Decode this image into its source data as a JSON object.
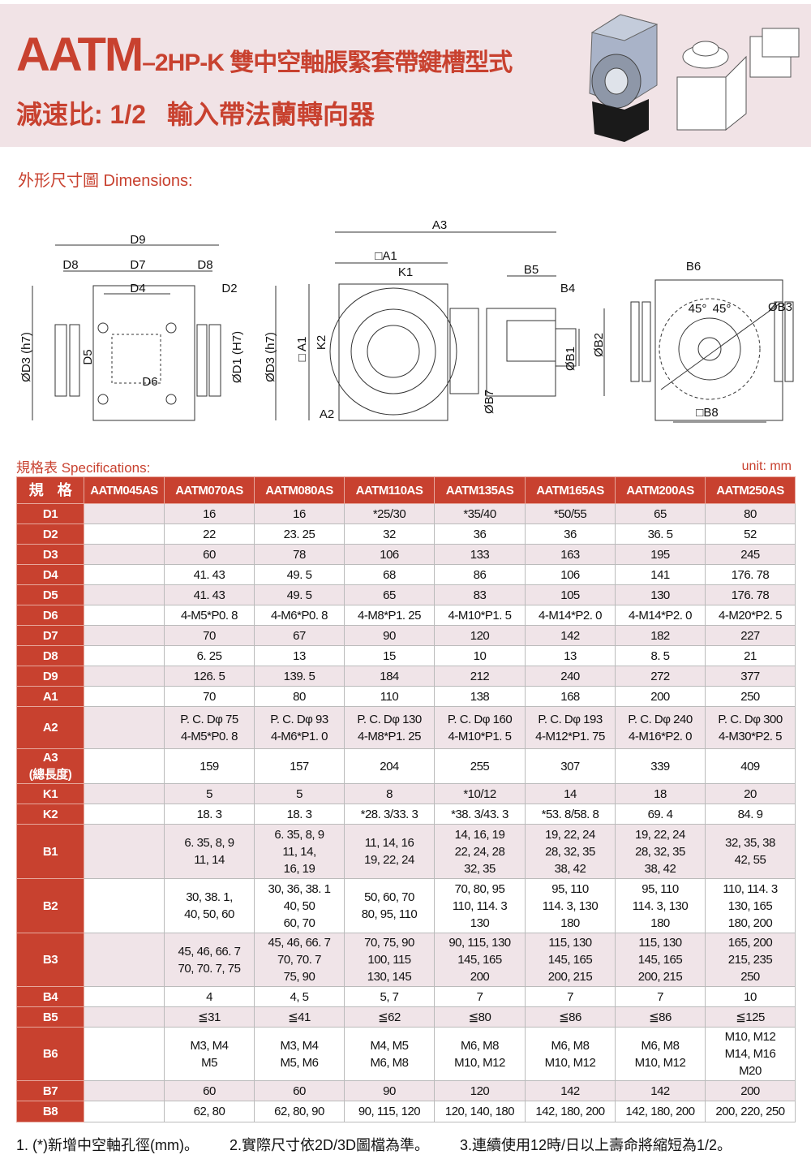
{
  "header": {
    "title_main": "AATM",
    "title_model": "–2HP-K",
    "title_desc": " 雙中空軸脹緊套帶鍵槽型式",
    "ratio": "減速比: 1/2",
    "input": "輸入帶法蘭轉向器"
  },
  "dimensions": {
    "heading": "外形尺寸圖 Dimensions:",
    "labels": {
      "D9": "D9",
      "D8a": "D8",
      "D7": "D7",
      "D8b": "D8",
      "D4": "D4",
      "D2": "D2",
      "D3a": "ØD3 (h7)",
      "D5": "D5",
      "D6": "D6",
      "D1": "ØD1 (H7)",
      "D3b": "ØD3 (h7)",
      "A3": "A3",
      "A1": "□A1",
      "K1": "K1",
      "B5": "B5",
      "B4": "B4",
      "A1v": "□ A1",
      "K2": "K2",
      "A2": "A2",
      "B7": "ØB7",
      "B1": "ØB1",
      "B2": "ØB2",
      "B6": "B6",
      "ang1": "45°",
      "ang2": "45°",
      "B3": "ØB3",
      "B8": "□B8"
    }
  },
  "specs": {
    "heading": "規格表 Specifications:",
    "unit": "unit: mm",
    "corner": "規　格",
    "models": [
      "AATM045AS",
      "AATM070AS",
      "AATM080AS",
      "AATM110AS",
      "AATM135AS",
      "AATM165AS",
      "AATM200AS",
      "AATM250AS"
    ],
    "rows": [
      {
        "label": "D1",
        "values": [
          "",
          "16",
          "16",
          "*25/30",
          "*35/40",
          "*50/55",
          "65",
          "80"
        ]
      },
      {
        "label": "D2",
        "values": [
          "",
          "22",
          "23. 25",
          "32",
          "36",
          "36",
          "36. 5",
          "52"
        ]
      },
      {
        "label": "D3",
        "values": [
          "",
          "60",
          "78",
          "106",
          "133",
          "163",
          "195",
          "245"
        ]
      },
      {
        "label": "D4",
        "values": [
          "",
          "41. 43",
          "49. 5",
          "68",
          "86",
          "106",
          "141",
          "176. 78"
        ]
      },
      {
        "label": "D5",
        "values": [
          "",
          "41. 43",
          "49. 5",
          "65",
          "83",
          "105",
          "130",
          "176. 78"
        ]
      },
      {
        "label": "D6",
        "values": [
          "",
          "4-M5*P0. 8",
          "4-M6*P0. 8",
          "4-M8*P1. 25",
          "4-M10*P1. 5",
          "4-M14*P2. 0",
          "4-M14*P2. 0",
          "4-M20*P2. 5"
        ]
      },
      {
        "label": "D7",
        "values": [
          "",
          "70",
          "67",
          "90",
          "120",
          "142",
          "182",
          "227"
        ]
      },
      {
        "label": "D8",
        "values": [
          "",
          "6. 25",
          "13",
          "15",
          "10",
          "13",
          "8. 5",
          "21"
        ]
      },
      {
        "label": "D9",
        "values": [
          "",
          "126. 5",
          "139. 5",
          "184",
          "212",
          "240",
          "272",
          "377"
        ]
      },
      {
        "label": "A1",
        "values": [
          "",
          "70",
          "80",
          "110",
          "138",
          "168",
          "200",
          "250"
        ]
      },
      {
        "label": "A2",
        "values": [
          "",
          "P. C. Dφ 75\n4-M5*P0. 8",
          "P. C. Dφ 93\n4-M6*P1. 0",
          "P. C. Dφ 130\n4-M8*P1. 25",
          "P. C. Dφ 160\n4-M10*P1. 5",
          "P. C. Dφ 193\n4-M12*P1. 75",
          "P. C. Dφ 240\n4-M16*P2. 0",
          "P. C. Dφ 300\n4-M30*P2. 5"
        ]
      },
      {
        "label": "A3\n(總長度)",
        "values": [
          "",
          "159",
          "157",
          "204",
          "255",
          "307",
          "339",
          "409"
        ]
      },
      {
        "label": "K1",
        "values": [
          "",
          "5",
          "5",
          "8",
          "*10/12",
          "14",
          "18",
          "20"
        ]
      },
      {
        "label": "K2",
        "values": [
          "",
          "18. 3",
          "18. 3",
          "*28. 3/33. 3",
          "*38. 3/43. 3",
          "*53. 8/58. 8",
          "69. 4",
          "84. 9"
        ]
      },
      {
        "label": "B1",
        "values": [
          "",
          "6. 35, 8, 9\n11, 14",
          "6. 35, 8, 9\n11, 14,\n16, 19",
          "11, 14, 16\n19, 22, 24",
          "14, 16, 19\n22, 24, 28\n32, 35",
          "19, 22, 24\n28, 32, 35\n38, 42",
          "19, 22, 24\n28, 32, 35\n38, 42",
          "32, 35, 38\n42, 55"
        ]
      },
      {
        "label": "B2",
        "values": [
          "",
          "30, 38. 1,\n40, 50, 60",
          "30, 36, 38. 1\n40, 50\n60, 70",
          "50, 60, 70\n80, 95, 110",
          "70, 80, 95\n110, 114. 3\n130",
          "95, 110\n114. 3, 130\n180",
          "95, 110\n114. 3, 130\n180",
          "110, 114. 3\n130, 165\n180, 200"
        ]
      },
      {
        "label": "B3",
        "values": [
          "",
          "45, 46, 66. 7\n70, 70. 7, 75",
          "45, 46, 66. 7\n70, 70. 7\n75, 90",
          "70, 75, 90\n100, 115\n130, 145",
          "90, 115, 130\n145, 165\n200",
          "115, 130\n145, 165\n200, 215",
          "115, 130\n145, 165\n200, 215",
          "165, 200\n215, 235\n250"
        ]
      },
      {
        "label": "B4",
        "values": [
          "",
          "4",
          "4, 5",
          "5, 7",
          "7",
          "7",
          "7",
          "10"
        ]
      },
      {
        "label": "B5",
        "values": [
          "",
          "≦31",
          "≦41",
          "≦62",
          "≦80",
          "≦86",
          "≦86",
          "≦125"
        ]
      },
      {
        "label": "B6",
        "values": [
          "",
          "M3, M4\nM5",
          "M3, M4\nM5, M6",
          "M4, M5\nM6, M8",
          "M6, M8\nM10, M12",
          "M6, M8\nM10, M12",
          "M6, M8\nM10, M12",
          "M10, M12\nM14, M16\nM20"
        ]
      },
      {
        "label": "B7",
        "values": [
          "",
          "60",
          "60",
          "90",
          "120",
          "142",
          "142",
          "200"
        ]
      },
      {
        "label": "B8",
        "values": [
          "",
          "62, 80",
          "62, 80, 90",
          "90, 115, 120",
          "120, 140, 180",
          "142, 180, 200",
          "142, 180, 200",
          "200, 220, 250"
        ]
      }
    ],
    "row_heights": [
      25,
      25,
      25,
      25,
      25,
      25,
      25,
      25,
      25,
      25,
      52,
      42,
      25,
      25,
      67,
      67,
      66,
      25,
      25,
      66,
      25,
      26
    ]
  },
  "footer": {
    "notes": [
      "1. (*)新增中空軸孔徑(mm)。",
      "2.實際尺寸依2D/3D圖檔為準。",
      "3.連續使用12時/日以上壽命將縮短為1/2。"
    ]
  },
  "colors": {
    "accent": "#c8412f",
    "band": "#f1e3e6",
    "row_alt": "#f0e4e8"
  }
}
